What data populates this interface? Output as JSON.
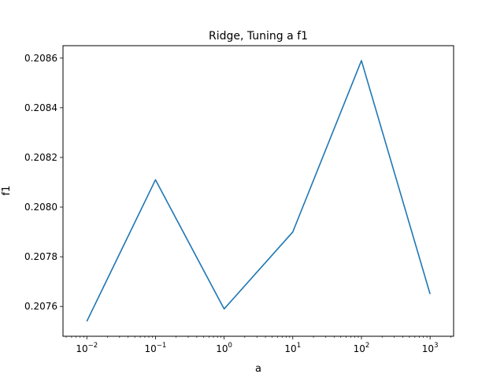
{
  "chart_data": {
    "type": "line",
    "title": "Ridge, Tuning a f1",
    "xlabel": "a",
    "ylabel": "f1",
    "xscale": "log",
    "xlim": [
      0.0045,
      2200
    ],
    "ylim": [
      0.20748,
      0.20865
    ],
    "x_ticks": [
      {
        "value": 0.01,
        "base": "10",
        "exp": "−2"
      },
      {
        "value": 0.1,
        "base": "10",
        "exp": "−1"
      },
      {
        "value": 1,
        "base": "10",
        "exp": "0"
      },
      {
        "value": 10,
        "base": "10",
        "exp": "1"
      },
      {
        "value": 100,
        "base": "10",
        "exp": "2"
      },
      {
        "value": 1000,
        "base": "10",
        "exp": "3"
      }
    ],
    "y_ticks": [
      {
        "value": 0.2076,
        "label": "0.2076"
      },
      {
        "value": 0.2078,
        "label": "0.2078"
      },
      {
        "value": 0.208,
        "label": "0.2080"
      },
      {
        "value": 0.2082,
        "label": "0.2082"
      },
      {
        "value": 0.2084,
        "label": "0.2084"
      },
      {
        "value": 0.2086,
        "label": "0.2086"
      }
    ],
    "grid": false,
    "series": [
      {
        "color": "#1f77b4",
        "x": [
          0.01,
          0.1,
          1,
          10,
          100,
          1000
        ],
        "y": [
          0.20754,
          0.20811,
          0.20759,
          0.2079,
          0.20859,
          0.20765
        ]
      }
    ]
  }
}
